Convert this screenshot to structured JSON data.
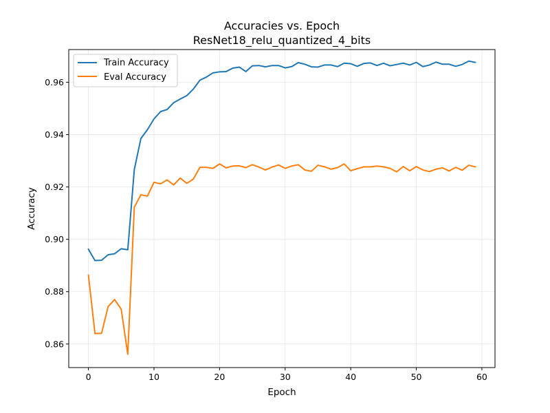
{
  "chart_data": {
    "type": "line",
    "title": "Accuracies vs. Epoch",
    "subtitle": "ResNet18_relu_quantized_4_bits",
    "xlabel": "Epoch",
    "ylabel": "Accuracy",
    "xlim": [
      -3,
      62
    ],
    "ylim": [
      0.851,
      0.9725
    ],
    "xticks": [
      0,
      10,
      20,
      30,
      40,
      50,
      60
    ],
    "xtick_labels": [
      "0",
      "10",
      "20",
      "30",
      "40",
      "50",
      "60"
    ],
    "yticks": [
      0.86,
      0.88,
      0.9,
      0.92,
      0.94,
      0.96
    ],
    "ytick_labels": [
      "0.86",
      "0.88",
      "0.90",
      "0.92",
      "0.94",
      "0.96"
    ],
    "grid": true,
    "legend_position": "top-left",
    "x": [
      0,
      1,
      2,
      3,
      4,
      5,
      6,
      7,
      8,
      9,
      10,
      11,
      12,
      13,
      14,
      15,
      16,
      17,
      18,
      19,
      20,
      21,
      22,
      23,
      24,
      25,
      26,
      27,
      28,
      29,
      30,
      31,
      32,
      33,
      34,
      35,
      36,
      37,
      38,
      39,
      40,
      41,
      42,
      43,
      44,
      45,
      46,
      47,
      48,
      49,
      50,
      51,
      52,
      53,
      54,
      55,
      56,
      57,
      58,
      59
    ],
    "series": [
      {
        "name": "Train Accuracy",
        "color": "#1f77b4",
        "values": [
          0.8962,
          0.8919,
          0.892,
          0.8941,
          0.8945,
          0.8964,
          0.896,
          0.9267,
          0.9385,
          0.9419,
          0.946,
          0.9488,
          0.9496,
          0.9522,
          0.9536,
          0.9549,
          0.9574,
          0.9608,
          0.962,
          0.9636,
          0.964,
          0.9641,
          0.9654,
          0.9658,
          0.9641,
          0.9663,
          0.9664,
          0.9659,
          0.9664,
          0.9664,
          0.9655,
          0.966,
          0.9675,
          0.9669,
          0.9659,
          0.9658,
          0.9666,
          0.9666,
          0.966,
          0.9673,
          0.9671,
          0.9661,
          0.9672,
          0.9674,
          0.9664,
          0.9673,
          0.9663,
          0.9668,
          0.9673,
          0.9666,
          0.9676,
          0.966,
          0.9666,
          0.9677,
          0.9669,
          0.9669,
          0.9661,
          0.9668,
          0.9681,
          0.9676
        ]
      },
      {
        "name": "Eval Accuracy",
        "color": "#ff7f0e",
        "values": [
          0.8863,
          0.864,
          0.8641,
          0.8743,
          0.877,
          0.8733,
          0.8561,
          0.9123,
          0.917,
          0.9165,
          0.9218,
          0.9212,
          0.9227,
          0.9208,
          0.9234,
          0.9214,
          0.923,
          0.9275,
          0.9275,
          0.9271,
          0.9288,
          0.9273,
          0.928,
          0.9281,
          0.9274,
          0.9285,
          0.9276,
          0.9265,
          0.9276,
          0.9284,
          0.9271,
          0.928,
          0.9285,
          0.9265,
          0.926,
          0.9283,
          0.9277,
          0.9268,
          0.9274,
          0.9288,
          0.9262,
          0.927,
          0.9277,
          0.9277,
          0.928,
          0.9277,
          0.9271,
          0.9258,
          0.9278,
          0.9262,
          0.9278,
          0.9265,
          0.9259,
          0.9268,
          0.9273,
          0.9261,
          0.9275,
          0.9264,
          0.9283,
          0.9277
        ]
      }
    ]
  }
}
